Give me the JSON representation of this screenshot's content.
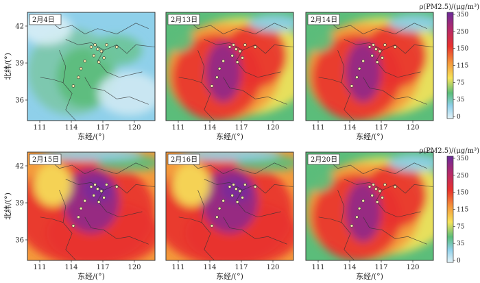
{
  "figure": {
    "xlabel": "东经/(°)",
    "ylabel": "北纬/(°)",
    "x_ticks": [
      "111",
      "114",
      "117",
      "120"
    ],
    "y_ticks": [
      "42",
      "39",
      "36"
    ],
    "colorbar": {
      "label": "ρ(PM2.5)/(μg/m³)",
      "ticks": [
        "350",
        "250",
        "150",
        "115",
        "75",
        "35",
        "0"
      ],
      "levels": [
        0,
        35,
        75,
        115,
        150,
        250,
        350
      ],
      "colors": [
        "#e4f3f8",
        "#8fd0ea",
        "#5bbd7a",
        "#f6e35a",
        "#f49a3c",
        "#e8322d",
        "#7a2a9a"
      ]
    }
  },
  "panels": [
    {
      "date": "2月4日",
      "pollution_level": "low"
    },
    {
      "date": "2月13日",
      "pollution_level": "high"
    },
    {
      "date": "2月14日",
      "pollution_level": "high"
    },
    {
      "date": "2月15日",
      "pollution_level": "very-high"
    },
    {
      "date": "2月16日",
      "pollution_level": "very-high"
    },
    {
      "date": "2月20日",
      "pollution_level": "high"
    }
  ]
}
